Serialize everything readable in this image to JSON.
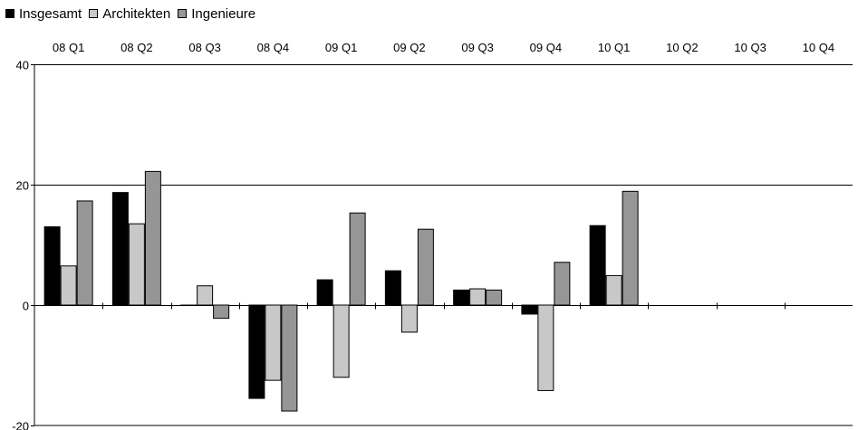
{
  "chart_data": {
    "type": "bar",
    "title": "",
    "xlabel": "",
    "ylabel": "",
    "categories": [
      "08 Q1",
      "08 Q2",
      "08 Q3",
      "08 Q4",
      "09 Q1",
      "09 Q2",
      "09 Q3",
      "09 Q4",
      "10 Q1",
      "10 Q2",
      "10 Q3",
      "10 Q4"
    ],
    "series": [
      {
        "name": "Insgesamt",
        "color": "#000000",
        "values": [
          13,
          18.7,
          0,
          -15.5,
          4.2,
          5.7,
          2.5,
          -1.5,
          13.2,
          null,
          null,
          null
        ]
      },
      {
        "name": "Architekten",
        "color": "#c8c8c8",
        "values": [
          6.5,
          13.5,
          3.2,
          -12.5,
          -12,
          -4.5,
          2.7,
          -14.2,
          4.9,
          null,
          null,
          null
        ]
      },
      {
        "name": "Ingenieure",
        "color": "#969696",
        "values": [
          17.3,
          22.2,
          -2.2,
          -17.6,
          15.3,
          12.6,
          2.5,
          7.1,
          18.9,
          null,
          null,
          null
        ]
      }
    ],
    "ylim": [
      -20,
      40
    ],
    "yticks": [
      -20,
      0,
      20,
      40
    ],
    "ytick_labels": [
      "-20",
      "0",
      "20",
      "40"
    ],
    "grid": true,
    "legend_position": "top-left",
    "xtick_position": "top"
  }
}
